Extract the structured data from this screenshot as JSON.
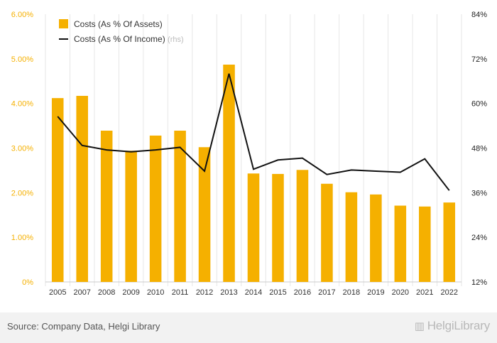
{
  "chart_data": {
    "type": "bar",
    "categories": [
      "2005",
      "2007",
      "2008",
      "2009",
      "2010",
      "2011",
      "2012",
      "2013",
      "2014",
      "2015",
      "2016",
      "2017",
      "2018",
      "2019",
      "2020",
      "2021",
      "2022"
    ],
    "series": [
      {
        "name": "Costs (As % Of Assets)",
        "type": "bar",
        "axis": "left",
        "color": "#f5b000",
        "values": [
          4.12,
          4.17,
          3.39,
          2.94,
          3.28,
          3.39,
          3.02,
          4.87,
          2.43,
          2.42,
          2.51,
          2.2,
          2.01,
          1.96,
          1.71,
          1.69,
          1.78
        ]
      },
      {
        "name": "Costs (As % Of Income)",
        "name_suffix": "(rhs)",
        "type": "line",
        "axis": "right",
        "color": "#111111",
        "values": [
          56.5,
          48.7,
          47.5,
          47.0,
          47.5,
          48.2,
          41.8,
          68.0,
          42.3,
          44.8,
          45.3,
          40.9,
          42.1,
          41.8,
          41.5,
          45.1,
          36.6
        ]
      }
    ],
    "y_left": {
      "min": 0,
      "max": 6,
      "ticks": [
        "0%",
        "1.00%",
        "2.00%",
        "3.00%",
        "4.00%",
        "5.00%",
        "6.00%"
      ]
    },
    "y_right": {
      "min": 12,
      "max": 84,
      "ticks": [
        "12%",
        "24%",
        "36%",
        "48%",
        "60%",
        "72%",
        "84%"
      ]
    },
    "grid": "vertical",
    "legend_position": "top-left",
    "colors": {
      "left_axis_text": "#f5b000",
      "right_axis_text": "#222222",
      "x_axis_text": "#333333"
    }
  },
  "footer": {
    "source": "Source: Company Data, Helgi Library",
    "brand": "HelgiLibrary"
  }
}
